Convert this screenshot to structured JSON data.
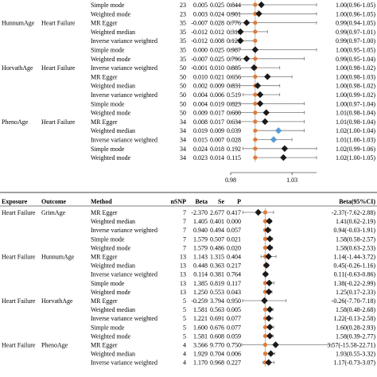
{
  "chart_data": [
    {
      "type": "forest",
      "panel": "top",
      "columns": [],
      "axis": {
        "min": 0.98,
        "max": 1.05,
        "ref": 1.0,
        "tick_labels": [
          "0.98",
          "1.03"
        ],
        "tick_values": [
          0.98,
          1.03
        ]
      },
      "rows": [
        {
          "exposure": "",
          "outcome": "",
          "method": "Simple mode",
          "nsnp": "23",
          "beta": "0.005",
          "se": "0.025",
          "p": "0.844",
          "ci_text": "1.00(0.96-1.05)",
          "est": 1.005,
          "lo": 0.96,
          "hi": 1.05,
          "marker": "diamond",
          "color": "#1a1a1a"
        },
        {
          "exposure": "",
          "outcome": "",
          "method": "Weighted mode",
          "nsnp": "23",
          "beta": "0.003",
          "se": "0.024",
          "p": "0.901",
          "ci_text": "1.00(0.96-1.05)",
          "est": 1.003,
          "lo": 0.96,
          "hi": 1.05,
          "marker": "diamond",
          "color": "#1a1a1a"
        },
        {
          "exposure": "HunnumAge",
          "outcome": "Heart Failure",
          "method": "MR Egger",
          "nsnp": "35",
          "beta": "-0.007",
          "se": "0.028",
          "p": "0.776",
          "ci_text": "0.99(0.94-1.05)",
          "est": 0.993,
          "lo": 0.94,
          "hi": 1.05,
          "marker": "diamond",
          "color": "#1a1a1a"
        },
        {
          "exposure": "",
          "outcome": "",
          "method": "Weighted median",
          "nsnp": "35",
          "beta": "-0.012",
          "se": "0.012",
          "p": "0.310",
          "ci_text": "0.99(0.97-1.01)",
          "est": 0.988,
          "lo": 0.97,
          "hi": 1.01,
          "marker": "diamond",
          "color": "#1a1a1a"
        },
        {
          "exposure": "",
          "outcome": "",
          "method": "Inverse variance weighted",
          "nsnp": "35",
          "beta": "-0.012",
          "se": "0.008",
          "p": "0.120",
          "ci_text": "0.99(0.97-1.00)",
          "est": 0.988,
          "lo": 0.97,
          "hi": 1.0,
          "marker": "diamond",
          "color": "#1a1a1a"
        },
        {
          "exposure": "",
          "outcome": "",
          "method": "Simple mode",
          "nsnp": "35",
          "beta": "0.000",
          "se": "0.025",
          "p": "0.987",
          "ci_text": "1.00(0.95-1.05)",
          "est": 1.0,
          "lo": 0.95,
          "hi": 1.05,
          "marker": "diamond",
          "color": "#1a1a1a"
        },
        {
          "exposure": "",
          "outcome": "",
          "method": "Weighted mode",
          "nsnp": "35",
          "beta": "-0.007",
          "se": "0.025",
          "p": "0.796",
          "ci_text": "0.99(0.95-1.04)",
          "est": 0.993,
          "lo": 0.95,
          "hi": 1.04,
          "marker": "diamond",
          "color": "#1a1a1a"
        },
        {
          "exposure": "HorvathAge",
          "outcome": "Heart Failure",
          "method": "Inverse variance weighted",
          "nsnp": "50",
          "beta": "-0.001",
          "se": "0.010",
          "p": "0.885",
          "ci_text": "1.00(0.98-1.02)",
          "est": 0.999,
          "lo": 0.98,
          "hi": 1.02,
          "marker": "diamond",
          "color": "#1a1a1a"
        },
        {
          "exposure": "",
          "outcome": "",
          "method": "MR Egger",
          "nsnp": "50",
          "beta": "0.010",
          "se": "0.021",
          "p": "0.656",
          "ci_text": "1.00(0.98-1.03)",
          "est": 1.01,
          "lo": 0.98,
          "hi": 1.03,
          "marker": "diamond",
          "color": "#1a1a1a"
        },
        {
          "exposure": "",
          "outcome": "",
          "method": "Weighted median",
          "nsnp": "50",
          "beta": "0.002",
          "se": "0.009",
          "p": "0.831",
          "ci_text": "1.00(0.98-1.02)",
          "est": 1.002,
          "lo": 0.98,
          "hi": 1.02,
          "marker": "diamond",
          "color": "#1a1a1a"
        },
        {
          "exposure": "",
          "outcome": "",
          "method": "Inverse variance weighted",
          "nsnp": "50",
          "beta": "0.004",
          "se": "0.006",
          "p": "0.519",
          "ci_text": "1.00(0.99-1.02)",
          "est": 1.004,
          "lo": 0.99,
          "hi": 1.02,
          "marker": "diamond",
          "color": "#1a1a1a"
        },
        {
          "exposure": "",
          "outcome": "",
          "method": "Simple mode",
          "nsnp": "50",
          "beta": "0.004",
          "se": "0.019",
          "p": "0.823",
          "ci_text": "1.00(0.97-1.04)",
          "est": 1.004,
          "lo": 0.97,
          "hi": 1.04,
          "marker": "diamond",
          "color": "#1a1a1a"
        },
        {
          "exposure": "",
          "outcome": "",
          "method": "Weighted mode",
          "nsnp": "50",
          "beta": "0.009",
          "se": "0.017",
          "p": "0.600",
          "ci_text": "1.01(0.98-1.04)",
          "est": 1.009,
          "lo": 0.98,
          "hi": 1.04,
          "marker": "diamond",
          "color": "#1a1a1a"
        },
        {
          "exposure": "PhenoAge",
          "outcome": "Heart Failure",
          "method": "MR Egger",
          "nsnp": "34",
          "beta": "0.008",
          "se": "0.017",
          "p": "0.634",
          "ci_text": "1.01(0.98-1.04)",
          "est": 1.008,
          "lo": 0.98,
          "hi": 1.04,
          "marker": "diamond",
          "color": "#1a1a1a"
        },
        {
          "exposure": "",
          "outcome": "",
          "method": "Weighted median",
          "nsnp": "34",
          "beta": "0.019",
          "se": "0.009",
          "p": "0.039",
          "ci_text": "1.02(1.00-1.04)",
          "est": 1.019,
          "lo": 1.0,
          "hi": 1.04,
          "marker": "diamond",
          "color": "#5b9bd5"
        },
        {
          "exposure": "",
          "outcome": "",
          "method": "Inverse variance weighted",
          "nsnp": "34",
          "beta": "0.015",
          "se": "0.007",
          "p": "0.028",
          "ci_text": "1.01(1.00-1.03)",
          "est": 1.015,
          "lo": 1.0,
          "hi": 1.03,
          "marker": "diamond",
          "color": "#5b9bd5"
        },
        {
          "exposure": "",
          "outcome": "",
          "method": "Simple mode",
          "nsnp": "34",
          "beta": "0.024",
          "se": "0.018",
          "p": "0.192",
          "ci_text": "1.02(0.99-1.06)",
          "est": 1.024,
          "lo": 0.99,
          "hi": 1.06,
          "marker": "diamond",
          "color": "#1a1a1a"
        },
        {
          "exposure": "",
          "outcome": "",
          "method": "Weighted mode",
          "nsnp": "34",
          "beta": "0.023",
          "se": "0.014",
          "p": "0.115",
          "ci_text": "1.02(1.00-1.05)",
          "est": 1.023,
          "lo": 1.0,
          "hi": 1.05,
          "marker": "diamond",
          "color": "#1a1a1a"
        }
      ]
    },
    {
      "type": "forest",
      "panel": "bottom",
      "columns": [
        "Exposure",
        "Outcome",
        "Method",
        "nSNP",
        "Beta",
        "Se",
        "P",
        "Beta(95%CI)"
      ],
      "axis": {
        "min": -8,
        "max": 23,
        "ref": 0,
        "tick_labels": [],
        "tick_values": []
      },
      "rows": [
        {
          "exposure": "Heart Failure",
          "outcome": "GrimAge",
          "method": "MR Egger",
          "nsnp": "7",
          "beta": "-2.370",
          "se": "2.677",
          "p": "0.417",
          "ci_text": "-2.37(-7.62-2.88)",
          "est": -2.37,
          "lo": -7.62,
          "hi": 2.88,
          "marker": "diamond",
          "color": "#1a1a1a"
        },
        {
          "exposure": "",
          "outcome": "",
          "method": "Weighted median",
          "nsnp": "7",
          "beta": "1.405",
          "se": "0.401",
          "p": "0.000",
          "ci_text": "1.41(0.62-2.19)",
          "est": 1.405,
          "lo": 0.62,
          "hi": 2.19,
          "marker": "diamond",
          "color": "#1a1a1a"
        },
        {
          "exposure": "",
          "outcome": "",
          "method": "Inverse variance weighted",
          "nsnp": "7",
          "beta": "0.940",
          "se": "0.494",
          "p": "0.057",
          "ci_text": "0.94(-0.03-1.91)",
          "est": 0.94,
          "lo": -0.03,
          "hi": 1.91,
          "marker": "diamond",
          "color": "#1a1a1a"
        },
        {
          "exposure": "",
          "outcome": "",
          "method": "Simple mode",
          "nsnp": "7",
          "beta": "1.579",
          "se": "0.507",
          "p": "0.021",
          "ci_text": "1.58(0.58-2.57)",
          "est": 1.579,
          "lo": 0.58,
          "hi": 2.57,
          "marker": "diamond",
          "color": "#1a1a1a"
        },
        {
          "exposure": "",
          "outcome": "",
          "method": "Weighted mode",
          "nsnp": "7",
          "beta": "1.579",
          "se": "0.486",
          "p": "0.020",
          "ci_text": "1.58(0.63-2.53)",
          "est": 1.579,
          "lo": 0.63,
          "hi": 2.53,
          "marker": "diamond",
          "color": "#1a1a1a"
        },
        {
          "exposure": "Heart Failure",
          "outcome": "HunnumAge",
          "method": "MR Egger",
          "nsnp": "13",
          "beta": "1.143",
          "se": "1.315",
          "p": "0.404",
          "ci_text": "1.14(-1.44-3.72)",
          "est": 1.143,
          "lo": -1.44,
          "hi": 3.72,
          "marker": "diamond",
          "color": "#1a1a1a"
        },
        {
          "exposure": "",
          "outcome": "",
          "method": "Weighted median",
          "nsnp": "13",
          "beta": "0.448",
          "se": "0.363",
          "p": "0.217",
          "ci_text": "0.45(-0.26-1.16)",
          "est": 0.448,
          "lo": -0.26,
          "hi": 1.16,
          "marker": "diamond",
          "color": "#1a1a1a"
        },
        {
          "exposure": "",
          "outcome": "",
          "method": "Inverse variance weighted",
          "nsnp": "13",
          "beta": "0.114",
          "se": "0.381",
          "p": "0.764",
          "ci_text": "0.11(-0.63-0.86)",
          "est": 0.114,
          "lo": -0.63,
          "hi": 0.86,
          "marker": "diamond",
          "color": "#1a1a1a"
        },
        {
          "exposure": "",
          "outcome": "",
          "method": "Simple mode",
          "nsnp": "13",
          "beta": "1.385",
          "se": "0.819",
          "p": "0.117",
          "ci_text": "1.38(-0.22-2.99)",
          "est": 1.385,
          "lo": -0.22,
          "hi": 2.99,
          "marker": "diamond",
          "color": "#1a1a1a"
        },
        {
          "exposure": "",
          "outcome": "",
          "method": "Weighted mode",
          "nsnp": "13",
          "beta": "1.250",
          "se": "0.553",
          "p": "0.043",
          "ci_text": "1.25(0.17-2.33)",
          "est": 1.25,
          "lo": 0.17,
          "hi": 2.33,
          "marker": "diamond",
          "color": "#1a1a1a"
        },
        {
          "exposure": "Heart Failure",
          "outcome": "HorvathAge",
          "method": "MR Egger",
          "nsnp": "5",
          "beta": "-0.259",
          "se": "3.794",
          "p": "0.950",
          "ci_text": "-0.26(-7.70-7.18)",
          "est": -0.259,
          "lo": -7.7,
          "hi": 7.18,
          "marker": "diamond",
          "color": "#1a1a1a"
        },
        {
          "exposure": "",
          "outcome": "",
          "method": "Weighted median",
          "nsnp": "5",
          "beta": "1.581",
          "se": "0.563",
          "p": "0.005",
          "ci_text": "1.58(0.48-2.68)",
          "est": 1.581,
          "lo": 0.48,
          "hi": 2.68,
          "marker": "diamond",
          "color": "#1a1a1a"
        },
        {
          "exposure": "",
          "outcome": "",
          "method": "Inverse variance weighted",
          "nsnp": "5",
          "beta": "1.221",
          "se": "0.691",
          "p": "0.077",
          "ci_text": "1.22(-0.13-2.58)",
          "est": 1.221,
          "lo": -0.13,
          "hi": 2.58,
          "marker": "diamond",
          "color": "#1a1a1a"
        },
        {
          "exposure": "",
          "outcome": "",
          "method": "Simple mode",
          "nsnp": "5",
          "beta": "1.600",
          "se": "0.676",
          "p": "0.077",
          "ci_text": "1.60(0.28-2.93)",
          "est": 1.6,
          "lo": 0.28,
          "hi": 2.93,
          "marker": "diamond",
          "color": "#1a1a1a"
        },
        {
          "exposure": "",
          "outcome": "",
          "method": "Weighted mode",
          "nsnp": "5",
          "beta": "1.581",
          "se": "0.608",
          "p": "0.059",
          "ci_text": "1.58(0.39-2.77)",
          "est": 1.581,
          "lo": 0.39,
          "hi": 2.77,
          "marker": "diamond",
          "color": "#1a1a1a"
        },
        {
          "exposure": "Heart Failure",
          "outcome": "PhenoAge",
          "method": "MR Egger",
          "nsnp": "4",
          "beta": "3.566",
          "se": "9.770",
          "p": "0.750",
          "ci_text": "3.57(-15.58-22.71)",
          "est": 3.566,
          "lo": -15.58,
          "hi": 22.71,
          "marker": "diamond",
          "color": "#1a1a1a"
        },
        {
          "exposure": "",
          "outcome": "",
          "method": "Weighted median",
          "nsnp": "4",
          "beta": "1.929",
          "se": "0.704",
          "p": "0.006",
          "ci_text": "1.93(0.55-3.32)",
          "est": 1.929,
          "lo": 0.55,
          "hi": 3.32,
          "marker": "diamond",
          "color": "#1a1a1a"
        },
        {
          "exposure": "",
          "outcome": "",
          "method": "Inverse variance weighted",
          "nsnp": "4",
          "beta": "1.170",
          "se": "0.968",
          "p": "0.227",
          "ci_text": "1.17(-0.73-3.07)",
          "est": 1.17,
          "lo": -0.73,
          "hi": 3.07,
          "marker": "diamond",
          "color": "#1a1a1a"
        }
      ]
    }
  ]
}
